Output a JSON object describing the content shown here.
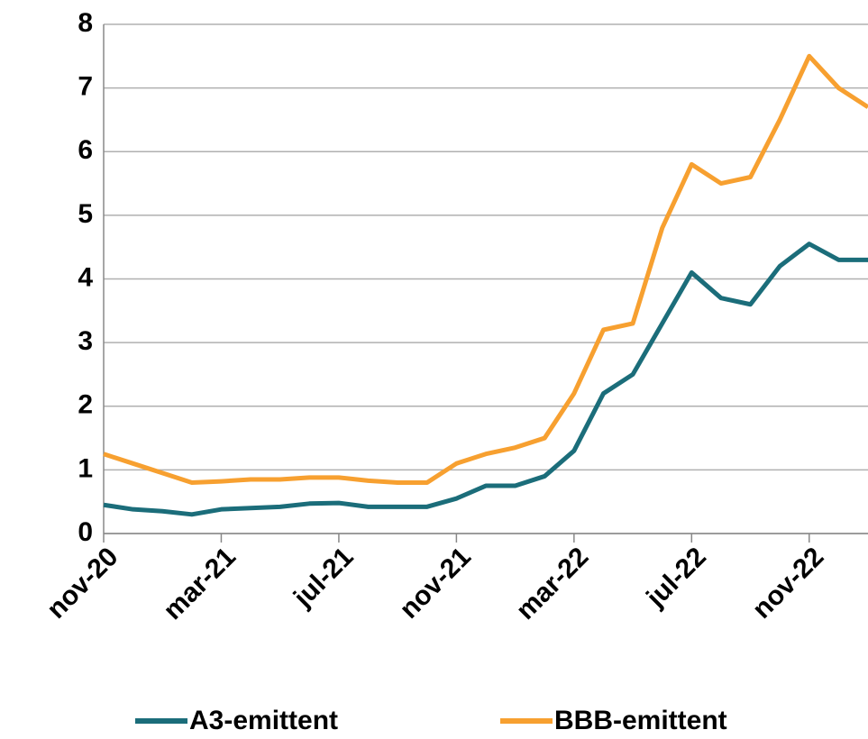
{
  "chart_data": {
    "type": "line",
    "categories": [
      "nov-20",
      null,
      null,
      null,
      "mar-21",
      null,
      null,
      null,
      "jul-21",
      null,
      null,
      null,
      "nov-21",
      null,
      null,
      null,
      "mar-22",
      null,
      null,
      null,
      "jul-22",
      null,
      null,
      null,
      "nov-22",
      null,
      null
    ],
    "series": [
      {
        "name": "A3-emittent",
        "color": "#1b6d7a",
        "values": [
          0.45,
          0.38,
          0.35,
          0.3,
          0.38,
          0.4,
          0.42,
          0.47,
          0.48,
          0.42,
          0.42,
          0.42,
          0.55,
          0.75,
          0.75,
          0.9,
          1.3,
          2.2,
          2.5,
          3.3,
          4.1,
          3.7,
          3.6,
          4.2,
          4.55,
          4.3,
          4.3
        ]
      },
      {
        "name": "BBB-emittent",
        "color": "#f7a030",
        "values": [
          1.25,
          1.1,
          0.95,
          0.8,
          0.82,
          0.85,
          0.85,
          0.88,
          0.88,
          0.83,
          0.8,
          0.8,
          1.1,
          1.25,
          1.35,
          1.5,
          2.2,
          3.2,
          3.3,
          4.8,
          5.8,
          5.5,
          5.6,
          6.5,
          7.5,
          7.0,
          6.7
        ]
      }
    ],
    "ylim": [
      0,
      8
    ],
    "yticks": [
      0,
      1,
      2,
      3,
      4,
      5,
      6,
      7,
      8
    ],
    "grid": true,
    "legend": "bottom"
  }
}
